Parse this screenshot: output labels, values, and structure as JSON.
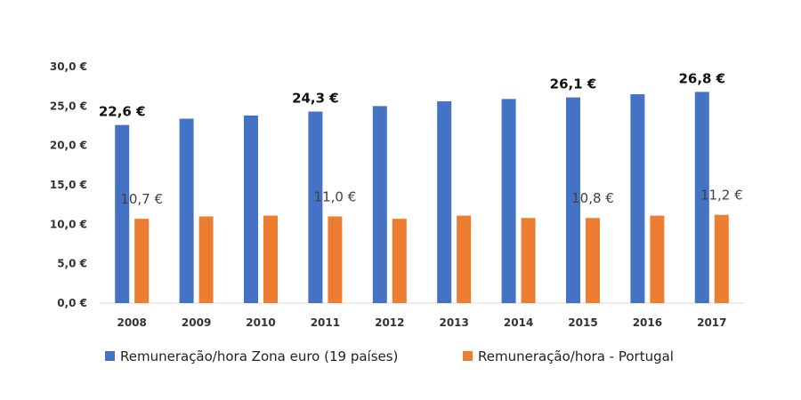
{
  "chart_data": {
    "type": "bar",
    "categories": [
      "2008",
      "2009",
      "2010",
      "2011",
      "2012",
      "2013",
      "2014",
      "2015",
      "2016",
      "2017"
    ],
    "series": [
      {
        "name": "Remuneração/hora Zona euro (19 países)",
        "color": "#4472C4",
        "values": [
          22.6,
          23.4,
          23.8,
          24.3,
          25.0,
          25.6,
          25.9,
          26.1,
          26.5,
          26.8
        ],
        "labels": [
          "22,6 €",
          "",
          "",
          "24,3 €",
          "",
          "",
          "",
          "26,1 €",
          "",
          "26,8 €"
        ]
      },
      {
        "name": "Remuneração/hora - Portugal",
        "color": "#ED7D31",
        "values": [
          10.7,
          11.0,
          11.1,
          11.0,
          10.7,
          11.1,
          10.8,
          10.8,
          11.1,
          11.2
        ],
        "labels": [
          "10,7 €",
          "",
          "",
          "11,0 €",
          "",
          "",
          "",
          "10,8 €",
          "",
          "11,2 €"
        ]
      }
    ],
    "y_ticks": [
      "0,0 €",
      "5,0 €",
      "10,0 €",
      "15,0 €",
      "20,0 €",
      "25,0 €",
      "30,0 €"
    ],
    "ylim": [
      0,
      30
    ],
    "y_step": 5,
    "grid": false,
    "legend_position": "bottom"
  }
}
